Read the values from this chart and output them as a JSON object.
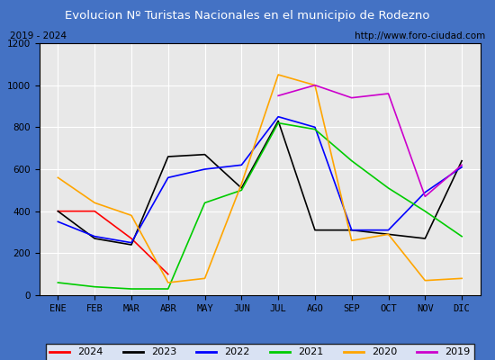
{
  "title": "Evolucion Nº Turistas Nacionales en el municipio de Rodezno",
  "subtitle_left": "2019 - 2024",
  "subtitle_right": "http://www.foro-ciudad.com",
  "x_labels": [
    "ENE",
    "FEB",
    "MAR",
    "ABR",
    "MAY",
    "JUN",
    "JUL",
    "AGO",
    "SEP",
    "OCT",
    "NOV",
    "DIC"
  ],
  "ylim": [
    0,
    1200
  ],
  "yticks": [
    0,
    200,
    400,
    600,
    800,
    1000,
    1200
  ],
  "series": {
    "2024": {
      "color": "#ff0000",
      "data": [
        400,
        400,
        270,
        100,
        null,
        null,
        null,
        null,
        null,
        null,
        null,
        null
      ]
    },
    "2023": {
      "color": "#000000",
      "data": [
        400,
        270,
        240,
        660,
        670,
        510,
        830,
        310,
        310,
        290,
        270,
        640
      ]
    },
    "2022": {
      "color": "#0000ff",
      "data": [
        350,
        280,
        250,
        560,
        600,
        620,
        850,
        800,
        310,
        310,
        490,
        610
      ]
    },
    "2021": {
      "color": "#00cc00",
      "data": [
        60,
        40,
        30,
        30,
        440,
        500,
        820,
        790,
        640,
        510,
        400,
        280
      ]
    },
    "2020": {
      "color": "#ffa500",
      "data": [
        560,
        440,
        380,
        60,
        80,
        530,
        1050,
        1000,
        260,
        290,
        70,
        80
      ]
    },
    "2019": {
      "color": "#cc00cc",
      "data": [
        null,
        null,
        null,
        null,
        null,
        null,
        950,
        1000,
        940,
        960,
        470,
        620
      ]
    }
  },
  "title_bg_color": "#4472c4",
  "title_font_color": "#ffffff",
  "plot_bg_color": "#e8e8e8",
  "border_color": "#4472c4",
  "grid_color": "#ffffff"
}
